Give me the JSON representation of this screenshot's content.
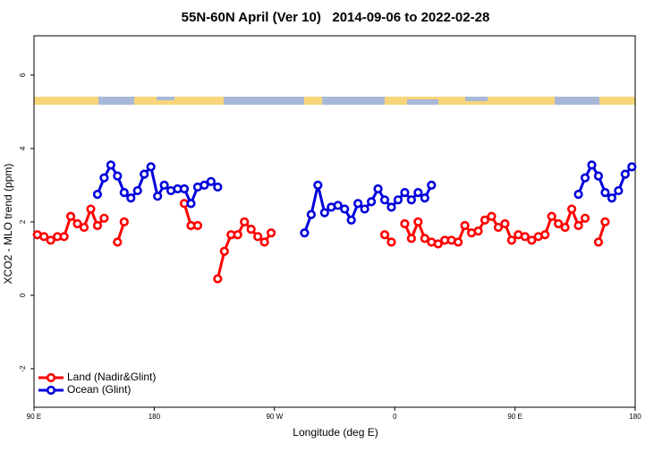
{
  "chart_data": {
    "type": "line",
    "title": "55N-60N April (Ver 10)   2014-09-06 to 2022-02-28",
    "x_label": "Longitude (deg E)",
    "y_label": "XCO2 - MLO trend (ppm)",
    "xlim": [
      90,
      540
    ],
    "xticks": [
      {
        "value": 90,
        "label": "90 E"
      },
      180,
      {
        "value": 270,
        "label": "90 W"
      },
      {
        "value": 360,
        "label": "0"
      },
      {
        "value": 450,
        "label": "90 E"
      },
      {
        "value": 540,
        "label": "180"
      }
    ],
    "ylim": [
      -3.05,
      7.07
    ],
    "yticks": [
      -2,
      0,
      2,
      4,
      6
    ],
    "legend": "bottom-left",
    "series": [
      {
        "name": "Land (Nadir&Glint)",
        "color": "#ff0000",
        "x": [
          92.5,
          97.5,
          102.5,
          107.5,
          112.5,
          117.5,
          122.5,
          127.5,
          132.5,
          137.5,
          142.5,
          147.5,
          152.5,
          157.5,
          162.5,
          202.5,
          207.5,
          212.5,
          217.5,
          227.5,
          232.5,
          237.5,
          242.5,
          247.5,
          252.5,
          257.5,
          262.5,
          267.5,
          272.5,
          352.5,
          357.5,
          362.5,
          367.5,
          372.5,
          377.5,
          382.5,
          387.5,
          392.5,
          397.5,
          402.5,
          407.5,
          412.5,
          417.5,
          422.5,
          427.5,
          432.5,
          437.5,
          442.5,
          447.5,
          452.5,
          457.5,
          462.5,
          467.5,
          472.5,
          477.5,
          482.5,
          487.5,
          492.5,
          497.5,
          502.5,
          507.5,
          512.5,
          517.5
        ],
        "values": [
          1.65,
          1.6,
          1.5,
          1.6,
          1.6,
          2.15,
          1.95,
          1.85,
          2.35,
          1.9,
          2.1,
          null,
          1.45,
          2.0,
          null,
          2.5,
          1.9,
          1.9,
          null,
          0.45,
          1.2,
          1.65,
          1.65,
          2.0,
          1.8,
          1.6,
          1.45,
          1.7,
          null,
          1.65,
          1.45,
          null,
          1.95,
          1.55,
          2.0,
          1.55,
          1.45,
          1.4,
          1.5,
          1.5,
          1.45,
          1.9,
          1.7,
          1.75,
          2.05,
          2.15,
          1.85,
          1.95,
          1.5,
          1.65,
          1.6,
          1.5,
          1.6,
          1.65,
          2.15,
          1.95,
          1.85,
          2.35,
          1.9,
          2.1,
          null,
          1.45,
          2.0
        ]
      },
      {
        "name": "Ocean (Glint)",
        "color": "#0000dd",
        "x": [
          137.5,
          142.5,
          147.5,
          152.5,
          157.5,
          162.5,
          167.5,
          172.5,
          177.5,
          182.5,
          187.5,
          192.5,
          197.5,
          202.5,
          207.5,
          212.5,
          217.5,
          222.5,
          227.5,
          232.5,
          292.5,
          297.5,
          302.5,
          307.5,
          312.5,
          317.5,
          322.5,
          327.5,
          332.5,
          337.5,
          342.5,
          347.5,
          352.5,
          357.5,
          362.5,
          367.5,
          372.5,
          377.5,
          382.5,
          387.5,
          392.5,
          497.5,
          502.5,
          507.5,
          512.5,
          517.5,
          522.5,
          527.5,
          532.5,
          537.5
        ],
        "values": [
          2.75,
          3.2,
          3.55,
          3.25,
          2.8,
          2.65,
          2.85,
          3.3,
          3.5,
          2.7,
          3.0,
          2.85,
          2.9,
          2.9,
          2.5,
          2.95,
          3.0,
          3.1,
          2.95,
          null,
          1.7,
          2.2,
          3.0,
          2.25,
          2.4,
          2.45,
          2.35,
          2.05,
          2.5,
          2.35,
          2.55,
          2.9,
          2.6,
          2.4,
          2.6,
          2.8,
          2.6,
          2.8,
          2.65,
          3.0,
          null,
          2.75,
          3.2,
          3.55,
          3.25,
          2.8,
          2.65,
          2.85,
          3.3,
          3.5
        ]
      }
    ]
  }
}
